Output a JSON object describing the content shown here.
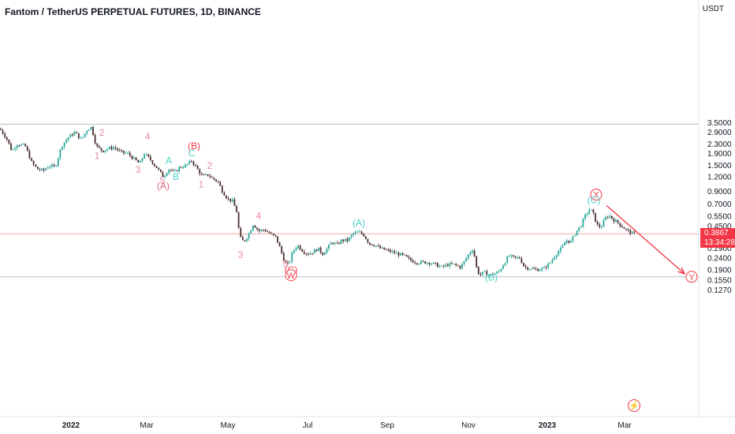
{
  "header": {
    "title": "Fantom / TetherUS PERPETUAL FUTURES, 1D, BINANCE",
    "price_unit": "USDT"
  },
  "price_tag": {
    "price": "0.3867",
    "countdown": "13:34:28",
    "color": "#f23645"
  },
  "toolbar": {
    "alert_icon": "lightning-icon"
  },
  "colors": {
    "up": "#26a69a",
    "down": "#ef5350",
    "wick_dark": "#4a2c2c",
    "wave_red": "#f23645",
    "wave_teal": "#4dd0c8",
    "wave_pink": "#e58aa0",
    "hline": "#b8bcc6",
    "price_line": "#f6a5ab"
  },
  "chart_data": {
    "type": "candlestick",
    "scale": "log",
    "y_ticks": [
      "3.5000",
      "2.9000",
      "2.3000",
      "1.9000",
      "1.5000",
      "1.2000",
      "0.9000",
      "0.7000",
      "0.5500",
      "0.4500",
      "0.2900",
      "0.2400",
      "0.1900",
      "0.1550",
      "0.1270"
    ],
    "x_ticks": [
      "2022",
      "Mar",
      "May",
      "Jul",
      "Sep",
      "Nov",
      "2023",
      "Mar"
    ],
    "ylim": [
      0.12,
      4.2
    ],
    "horizontal_lines": [
      3.4,
      0.165
    ],
    "current_price": 0.3867,
    "path_points": [
      [
        0,
        3.1
      ],
      [
        8,
        2.6
      ],
      [
        15,
        2.0
      ],
      [
        22,
        2.3
      ],
      [
        32,
        2.2
      ],
      [
        40,
        1.6
      ],
      [
        47,
        1.4
      ],
      [
        55,
        1.35
      ],
      [
        62,
        1.5
      ],
      [
        70,
        1.45
      ],
      [
        78,
        2.2
      ],
      [
        86,
        2.6
      ],
      [
        95,
        2.9
      ],
      [
        103,
        2.5
      ],
      [
        111,
        3.1
      ],
      [
        116,
        3.2
      ],
      [
        122,
        2.2
      ],
      [
        130,
        2.0
      ],
      [
        137,
        2.1
      ],
      [
        145,
        2.15
      ],
      [
        153,
        1.95
      ],
      [
        162,
        1.9
      ],
      [
        170,
        1.7
      ],
      [
        177,
        1.55
      ],
      [
        183,
        1.9
      ],
      [
        190,
        1.7
      ],
      [
        200,
        1.4
      ],
      [
        207,
        1.2
      ],
      [
        214,
        1.4
      ],
      [
        221,
        1.3
      ],
      [
        228,
        1.45
      ],
      [
        236,
        1.5
      ],
      [
        243,
        1.65
      ],
      [
        250,
        1.4
      ],
      [
        257,
        1.2
      ],
      [
        264,
        1.25
      ],
      [
        270,
        1.15
      ],
      [
        276,
        1.1
      ],
      [
        282,
        0.9
      ],
      [
        289,
        0.77
      ],
      [
        295,
        0.74
      ],
      [
        300,
        0.6
      ],
      [
        304,
        0.36
      ],
      [
        309,
        0.33
      ],
      [
        315,
        0.38
      ],
      [
        321,
        0.47
      ],
      [
        328,
        0.41
      ],
      [
        335,
        0.42
      ],
      [
        342,
        0.39
      ],
      [
        350,
        0.36
      ],
      [
        356,
        0.28
      ],
      [
        361,
        0.22
      ],
      [
        366,
        0.21
      ],
      [
        371,
        0.27
      ],
      [
        377,
        0.31
      ],
      [
        383,
        0.28
      ],
      [
        390,
        0.26
      ],
      [
        397,
        0.27
      ],
      [
        403,
        0.29
      ],
      [
        409,
        0.26
      ],
      [
        415,
        0.29
      ],
      [
        421,
        0.33
      ],
      [
        427,
        0.31
      ],
      [
        433,
        0.34
      ],
      [
        441,
        0.34
      ],
      [
        448,
        0.39
      ],
      [
        455,
        0.4
      ],
      [
        461,
        0.38
      ],
      [
        468,
        0.32
      ],
      [
        475,
        0.31
      ],
      [
        482,
        0.29
      ],
      [
        490,
        0.28
      ],
      [
        497,
        0.27
      ],
      [
        505,
        0.26
      ],
      [
        512,
        0.25
      ],
      [
        520,
        0.23
      ],
      [
        528,
        0.22
      ],
      [
        536,
        0.22
      ],
      [
        544,
        0.22
      ],
      [
        552,
        0.21
      ],
      [
        560,
        0.2
      ],
      [
        568,
        0.21
      ],
      [
        576,
        0.21
      ],
      [
        584,
        0.2
      ],
      [
        590,
        0.23
      ],
      [
        596,
        0.27
      ],
      [
        600,
        0.29
      ],
      [
        604,
        0.2
      ],
      [
        608,
        0.17
      ],
      [
        614,
        0.18
      ],
      [
        620,
        0.17
      ],
      [
        626,
        0.175
      ],
      [
        632,
        0.18
      ],
      [
        638,
        0.21
      ],
      [
        645,
        0.25
      ],
      [
        652,
        0.24
      ],
      [
        659,
        0.24
      ],
      [
        665,
        0.2
      ],
      [
        672,
        0.195
      ],
      [
        680,
        0.19
      ],
      [
        690,
        0.195
      ],
      [
        698,
        0.22
      ],
      [
        705,
        0.26
      ],
      [
        712,
        0.29
      ],
      [
        718,
        0.34
      ],
      [
        724,
        0.33
      ],
      [
        730,
        0.4
      ],
      [
        736,
        0.45
      ],
      [
        742,
        0.55
      ],
      [
        748,
        0.64
      ],
      [
        752,
        0.58
      ],
      [
        757,
        0.46
      ],
      [
        762,
        0.44
      ],
      [
        767,
        0.52
      ],
      [
        772,
        0.56
      ],
      [
        778,
        0.51
      ],
      [
        784,
        0.48
      ],
      [
        790,
        0.44
      ],
      [
        796,
        0.41
      ],
      [
        802,
        0.39
      ],
      [
        805,
        0.387
      ]
    ],
    "projection": {
      "from": [
        769,
        0.68
      ],
      "to": [
        868,
        0.175
      ]
    },
    "wave_labels": [
      {
        "text": "2",
        "x": 129,
        "price": 2.7,
        "style": "pink"
      },
      {
        "text": "1",
        "x": 123,
        "price": 1.7,
        "style": "pink"
      },
      {
        "text": "4",
        "x": 187,
        "price": 2.5,
        "style": "pink"
      },
      {
        "text": "3",
        "x": 175,
        "price": 1.3,
        "style": "pink"
      },
      {
        "text": "5",
        "x": 206,
        "price": 1.05,
        "style": "pink"
      },
      {
        "text": "(A)",
        "x": 207,
        "price": 0.94,
        "style": "pink-paren"
      },
      {
        "text": "A",
        "x": 214,
        "price": 1.55,
        "style": "teal"
      },
      {
        "text": "B",
        "x": 223,
        "price": 1.13,
        "style": "teal"
      },
      {
        "text": "(B)",
        "x": 246,
        "price": 2.08,
        "style": "red-paren"
      },
      {
        "text": "C",
        "x": 243,
        "price": 1.8,
        "style": "teal"
      },
      {
        "text": "2",
        "x": 266,
        "price": 1.4,
        "style": "pink"
      },
      {
        "text": "1",
        "x": 255,
        "price": 0.97,
        "style": "pink"
      },
      {
        "text": "4",
        "x": 328,
        "price": 0.52,
        "style": "pink"
      },
      {
        "text": "3",
        "x": 305,
        "price": 0.24,
        "style": "pink"
      },
      {
        "text": "5",
        "x": 362,
        "price": 0.2,
        "style": "pink"
      },
      {
        "text": "(C)",
        "x": 369,
        "price": 0.178,
        "style": "red-paren"
      },
      {
        "text": "W",
        "x": 369,
        "price": 0.16,
        "style": "red-circle"
      },
      {
        "text": "(A)",
        "x": 455,
        "price": 0.45,
        "style": "teal-paren"
      },
      {
        "text": "(B)",
        "x": 623,
        "price": 0.153,
        "style": "teal-paren"
      },
      {
        "text": "X",
        "x": 756,
        "price": 0.79,
        "style": "red-circle"
      },
      {
        "text": "(C)",
        "x": 753,
        "price": 0.71,
        "style": "teal-paren"
      },
      {
        "text": "Y",
        "x": 877,
        "price": 0.155,
        "style": "red-circle"
      }
    ]
  }
}
